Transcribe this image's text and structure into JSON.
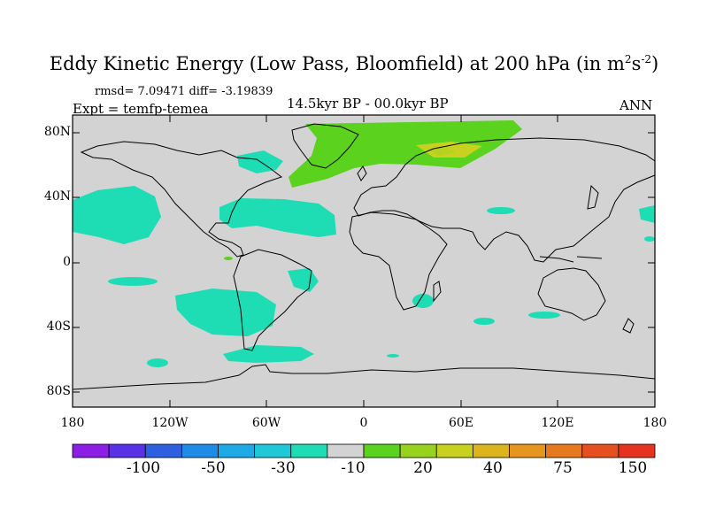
{
  "title": {
    "main": "Eddy Kinetic Energy (Low Pass, Bloomfield) at 200 hPa (in m",
    "sup1": "2",
    "mid": "s",
    "sup2": "-2",
    "end": ")"
  },
  "stats": "rmsd= 7.09471 diff= -3.19839",
  "expt": "Expt = temfp-temea",
  "subtitle": "14.5kyr BP - 00.0kyr BP",
  "season": "ANN",
  "map": {
    "lat_ticks": [
      "80N",
      "40N",
      "0",
      "40S",
      "80S"
    ],
    "lon_ticks": [
      "180",
      "120W",
      "60W",
      "0",
      "60E",
      "120E",
      "180"
    ],
    "background_color": "#d3d3d3"
  },
  "colorbar": {
    "colors": [
      "#8c1ee6",
      "#5a32e6",
      "#2e5fe0",
      "#1e8ce6",
      "#1eaae6",
      "#1ec8d7",
      "#1edcb4",
      "#d3d3d3",
      "#5ad21e",
      "#96d21e",
      "#c8d21e",
      "#dcb41e",
      "#e6961e",
      "#e6781e",
      "#e6501e",
      "#e6321e"
    ],
    "labels": [
      "-100",
      "-50",
      "-30",
      "-10",
      "20",
      "40",
      "75",
      "150"
    ]
  }
}
